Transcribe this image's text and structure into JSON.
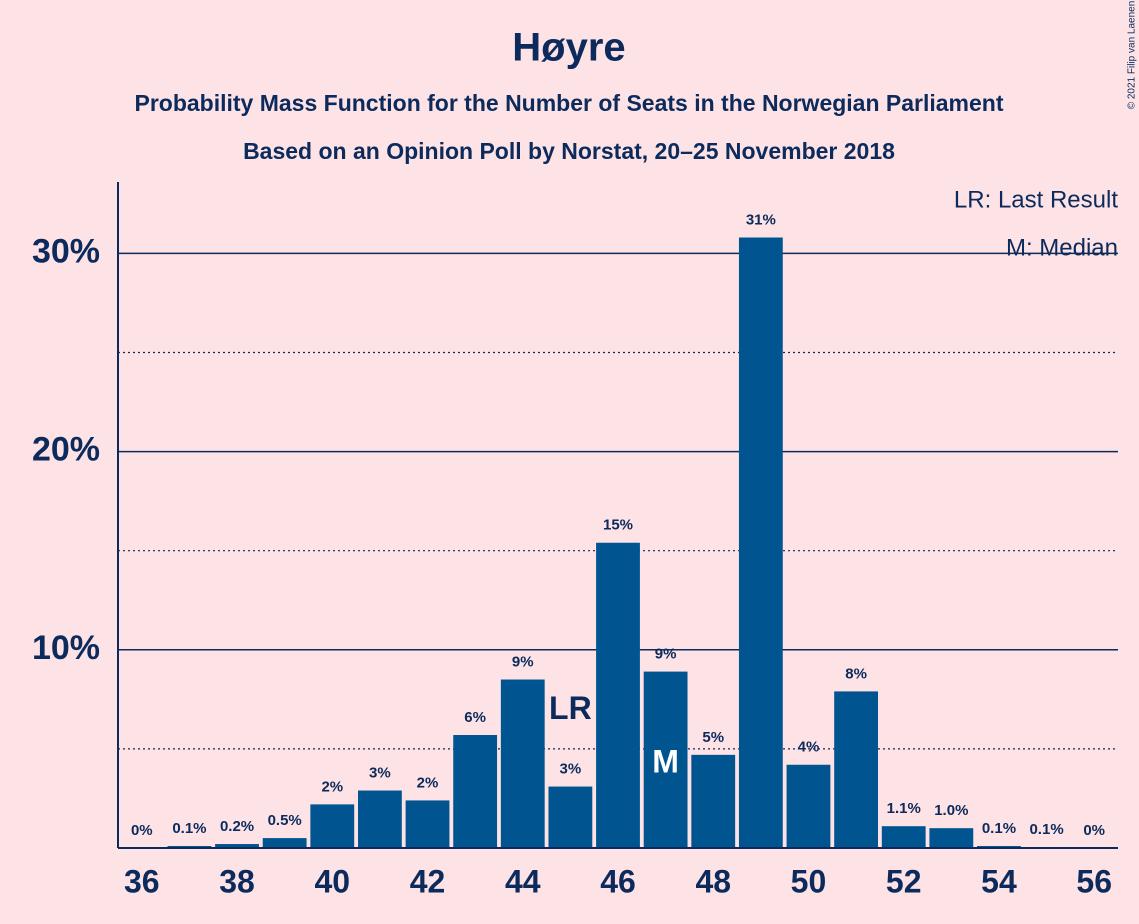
{
  "chart_data": {
    "type": "bar",
    "title": "Høyre",
    "subtitle": [
      "Probability Mass Function for the Number of Seats in the Norwegian Parliament",
      "Based on an Opinion Poll by Norstat, 20–25 November 2018"
    ],
    "x": [
      36,
      37,
      38,
      39,
      40,
      41,
      42,
      43,
      44,
      45,
      46,
      47,
      48,
      49,
      50,
      51,
      52,
      53,
      54,
      55,
      56
    ],
    "values": [
      0,
      0.1,
      0.2,
      0.5,
      2.2,
      2.9,
      2.4,
      5.7,
      8.5,
      3.1,
      15.4,
      8.9,
      4.7,
      30.8,
      4.2,
      7.9,
      1.1,
      1.0,
      0.1,
      0.05,
      0
    ],
    "value_labels": [
      "0%",
      "0.1%",
      "0.2%",
      "0.5%",
      "2%",
      "3%",
      "2%",
      "6%",
      "9%",
      "3%",
      "15%",
      "9%",
      "5%",
      "31%",
      "4%",
      "8%",
      "1.1%",
      "1.0%",
      "0.1%",
      "0.1%",
      "0%"
    ],
    "color": "#00548f",
    "xlim": [
      35.5,
      56.5
    ],
    "xticks": [
      36,
      38,
      40,
      42,
      44,
      46,
      48,
      50,
      52,
      54,
      56
    ],
    "ylim": [
      0,
      33.6
    ],
    "yticks": [
      {
        "value": 10,
        "label": "10%"
      },
      {
        "value": 20,
        "label": "20%"
      },
      {
        "value": 30,
        "label": "30%"
      }
    ],
    "minor_yticks": [
      5,
      15,
      25
    ],
    "grid": true,
    "annotations": [
      {
        "text": "LR",
        "x": 45
      },
      {
        "text": "M",
        "x": 47
      }
    ],
    "legend": [
      "LR: Last Result",
      "M: Median"
    ],
    "credit": "© 2021 Filip van Laenen"
  }
}
